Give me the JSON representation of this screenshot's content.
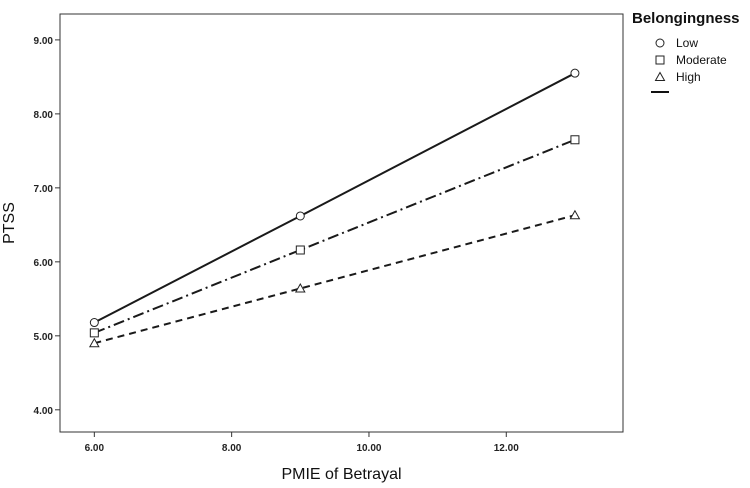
{
  "chart_data": {
    "type": "line",
    "title": "",
    "xlabel": "PMIE of Betrayal",
    "ylabel": "PTSS",
    "xlim": [
      5.5,
      13.7
    ],
    "ylim": [
      3.7,
      9.35
    ],
    "x_ticks": [
      "6.00",
      "8.00",
      "10.00",
      "12.00"
    ],
    "y_ticks": [
      "4.00",
      "5.00",
      "6.00",
      "7.00",
      "8.00",
      "9.00"
    ],
    "legend_title": "Belongingness",
    "legend_position": "top-right",
    "grid": false,
    "x": [
      6,
      9,
      13
    ],
    "series": [
      {
        "name": "Low",
        "marker": "circle",
        "line_style": "solid",
        "values": [
          5.18,
          6.62,
          8.55
        ]
      },
      {
        "name": "Moderate",
        "marker": "square",
        "line_style": "dash-dot",
        "values": [
          5.04,
          6.16,
          7.65
        ]
      },
      {
        "name": "High",
        "marker": "triangle",
        "line_style": "dashed",
        "values": [
          4.9,
          5.64,
          6.63
        ]
      }
    ]
  }
}
